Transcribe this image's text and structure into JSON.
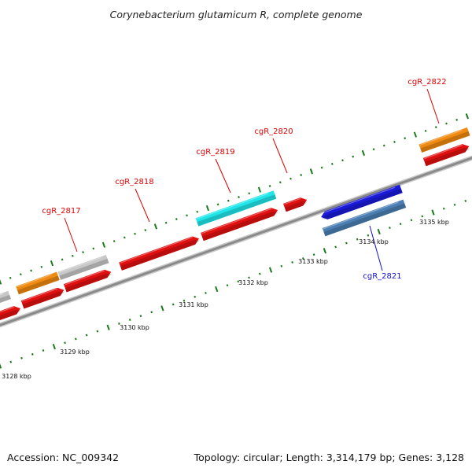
{
  "title": "Corynebacterium glutamicum R, complete genome",
  "footer": {
    "accession": "Accession: NC_009342",
    "summary": "Topology: circular; Length: 3,314,179 bp; Genes: 3,128"
  },
  "scale_labels": [
    "3128 kbp",
    "3129 kbp",
    "3130 kbp",
    "3131 kbp",
    "3132 kbp",
    "3133 kbp",
    "3134 kbp",
    "3135 kbp"
  ],
  "gene_labels": [
    {
      "text": "cgR_2817",
      "color": "#dd0000"
    },
    {
      "text": "cgR_2818",
      "color": "#dd0000"
    },
    {
      "text": "cgR_2819",
      "color": "#dd0000"
    },
    {
      "text": "cgR_2820",
      "color": "#dd0000"
    },
    {
      "text": "cgR_2822",
      "color": "#dd0000"
    },
    {
      "text": "cgR_2821",
      "color": "#1010cc"
    }
  ],
  "colors": {
    "cds": "#e01010",
    "cds_blue": "#1a1ad8",
    "gene_orange": "#f08a10",
    "gene_grey": "#c8c8c8",
    "gene_cyan": "#20e6ea",
    "gene_steel": "#4b7fb3",
    "backbone": "#8c8c8c",
    "ticks": "#1a7a1a"
  }
}
